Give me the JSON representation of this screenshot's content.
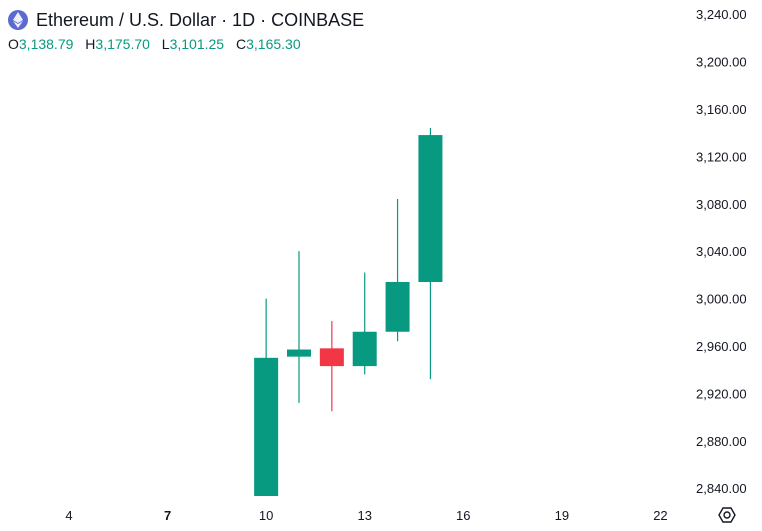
{
  "header": {
    "icon": "ethereum-icon",
    "title": "Ethereum / U.S. Dollar · 1D · COINBASE",
    "ohlc": [
      {
        "key": "O",
        "value": "3,138.79"
      },
      {
        "key": "H",
        "value": "3,175.70"
      },
      {
        "key": "L",
        "value": "3,101.25"
      },
      {
        "key": "C",
        "value": "3,165.30"
      }
    ]
  },
  "colors": {
    "up": "#089981",
    "down": "#f23645",
    "logo": "#5b6ad0"
  },
  "chart_data": {
    "type": "candlestick",
    "y_ticks": [
      "3,240.00",
      "3,200.00",
      "3,160.00",
      "3,120.00",
      "3,080.00",
      "3,040.00",
      "3,000.00",
      "2,960.00",
      "2,920.00",
      "2,880.00",
      "2,840.00"
    ],
    "y_tick_values": [
      3240,
      3200,
      3160,
      3120,
      3080,
      3040,
      3000,
      2960,
      2920,
      2880,
      2840
    ],
    "x_ticks": [
      {
        "day": 4,
        "label": "4",
        "bold": false
      },
      {
        "day": 7,
        "label": "7",
        "bold": true
      },
      {
        "day": 10,
        "label": "10",
        "bold": false
      },
      {
        "day": 13,
        "label": "13",
        "bold": false
      },
      {
        "day": 16,
        "label": "16",
        "bold": false
      },
      {
        "day": 19,
        "label": "19",
        "bold": false
      },
      {
        "day": 22,
        "label": "22",
        "bold": false
      }
    ],
    "ylim": [
      2830,
      3252
    ],
    "xlim": [
      1.9,
      22.9
    ],
    "candles": [
      {
        "day": 10,
        "open": 2833,
        "high": 3000,
        "low": 2833,
        "close": 2950
      },
      {
        "day": 11,
        "open": 2951,
        "high": 3040,
        "low": 2912,
        "close": 2957
      },
      {
        "day": 12,
        "open": 2958,
        "high": 2981,
        "low": 2905,
        "close": 2943
      },
      {
        "day": 13,
        "open": 2943,
        "high": 3022,
        "low": 2936,
        "close": 2972
      },
      {
        "day": 14,
        "open": 2972,
        "high": 3084,
        "low": 2964,
        "close": 3014
      },
      {
        "day": 15,
        "open": 3014,
        "high": 3144,
        "low": 2932,
        "close": 3138
      }
    ]
  }
}
